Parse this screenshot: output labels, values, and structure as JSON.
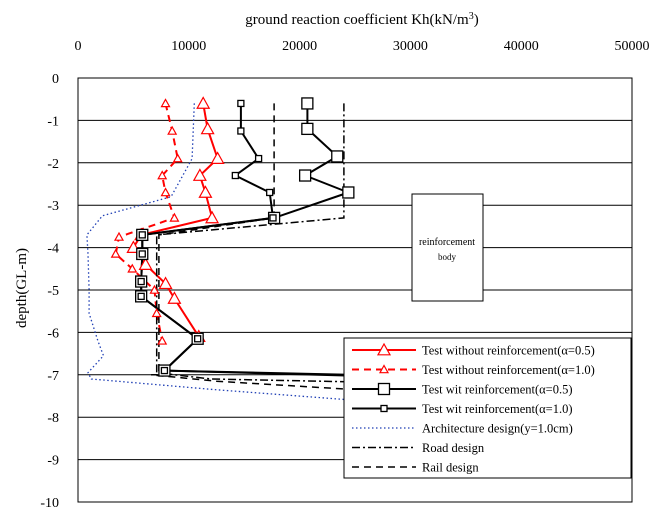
{
  "chart_data": {
    "type": "line",
    "orientation": "depth-down",
    "xlabel": "ground reaction coefficient  Kh(kN/m",
    "xlabel_sup": "3",
    "xlabel_end": ")",
    "ylabel": "depth(GL-m)",
    "xlim": [
      0,
      50000
    ],
    "ylim": [
      -10,
      0
    ],
    "x_ticks": [
      "0",
      "10000",
      "20000",
      "30000",
      "40000",
      "50000"
    ],
    "y_ticks": [
      "0",
      "-1",
      "-2",
      "-3",
      "-4",
      "-5",
      "-6",
      "-7",
      "-8",
      "-9",
      "-10"
    ],
    "grid": "horizontal",
    "legend_position": "bottom-right",
    "annotation": {
      "line1": "reinforcement",
      "line2": "body"
    },
    "series": [
      {
        "name": "Test without reinforcement(α=0.5)",
        "color": "#ff0000",
        "dash": "solid",
        "marker": "triangle",
        "marker_size": "large",
        "width": 2,
        "points": [
          [
            11300,
            -0.6
          ],
          [
            11700,
            -1.2
          ],
          [
            12600,
            -1.9
          ],
          [
            11000,
            -2.3
          ],
          [
            11500,
            -2.7
          ],
          [
            12100,
            -3.3
          ],
          [
            5700,
            -3.7
          ],
          [
            5000,
            -4.0
          ],
          [
            6100,
            -4.4
          ],
          [
            7900,
            -4.85
          ],
          [
            8700,
            -5.2
          ],
          [
            10900,
            -6.1
          ]
        ]
      },
      {
        "name": "Test without reinforcement(α=1.0)",
        "color": "#ff0000",
        "dash": "dashed",
        "marker": "triangle",
        "marker_size": "small",
        "width": 2,
        "points": [
          [
            7900,
            -0.6
          ],
          [
            8500,
            -1.25
          ],
          [
            9000,
            -1.9
          ],
          [
            7600,
            -2.3
          ],
          [
            7900,
            -2.7
          ],
          [
            8700,
            -3.3
          ],
          [
            3700,
            -3.75
          ],
          [
            3400,
            -4.15
          ],
          [
            4900,
            -4.5
          ],
          [
            6900,
            -5.0
          ],
          [
            7100,
            -5.55
          ],
          [
            7600,
            -6.2
          ]
        ]
      },
      {
        "name": "Test wit reinforcement(α=0.5)",
        "color": "#000000",
        "dash": "solid",
        "marker": "square",
        "marker_size": "large",
        "width": 2,
        "points": [
          [
            20700,
            -0.6
          ],
          [
            20700,
            -1.2
          ],
          [
            23400,
            -1.85
          ],
          [
            20500,
            -2.3
          ],
          [
            24400,
            -2.7
          ],
          [
            17700,
            -3.3
          ],
          [
            5800,
            -3.7
          ],
          [
            5800,
            -4.15
          ],
          [
            5700,
            -4.8
          ],
          [
            5700,
            -5.15
          ],
          [
            10800,
            -6.15
          ],
          [
            7800,
            -6.9
          ],
          [
            50000,
            -7.15
          ]
        ]
      },
      {
        "name": "Test wit reinforcement(α=1.0)",
        "color": "#000000",
        "dash": "solid",
        "marker": "square",
        "marker_size": "small",
        "width": 2,
        "points": [
          [
            14700,
            -0.6
          ],
          [
            14700,
            -1.25
          ],
          [
            16300,
            -1.9
          ],
          [
            14200,
            -2.3
          ],
          [
            17300,
            -2.7
          ],
          [
            17600,
            -3.3
          ],
          [
            5800,
            -3.7
          ],
          [
            5800,
            -4.15
          ],
          [
            5700,
            -4.8
          ],
          [
            5700,
            -5.15
          ],
          [
            10800,
            -6.15
          ],
          [
            7800,
            -6.9
          ],
          [
            50000,
            -7.2
          ]
        ]
      },
      {
        "name": "Architecture design(y=1.0cm)",
        "color": "#1f3fb5",
        "dash": "dotted",
        "marker": "none",
        "width": 1.3,
        "points": [
          [
            10500,
            -0.6
          ],
          [
            10300,
            -1.9
          ],
          [
            8400,
            -2.8
          ],
          [
            2200,
            -3.25
          ],
          [
            800,
            -3.7
          ],
          [
            900,
            -4.15
          ],
          [
            1000,
            -5.0
          ],
          [
            1000,
            -5.55
          ],
          [
            1800,
            -6.2
          ],
          [
            2300,
            -6.55
          ],
          [
            900,
            -6.95
          ],
          [
            1200,
            -7.1
          ],
          [
            12300,
            -7.35
          ],
          [
            35000,
            -7.8
          ],
          [
            43000,
            -8.2
          ],
          [
            47000,
            -8.6
          ]
        ]
      },
      {
        "name": "Road design",
        "color": "#000000",
        "dash": "dashdot",
        "marker": "none",
        "width": 1.5,
        "points": [
          [
            24000,
            -0.6
          ],
          [
            24000,
            -3.3
          ],
          [
            7100,
            -3.7
          ],
          [
            7100,
            -6.95
          ],
          [
            12000,
            -7.1
          ],
          [
            50000,
            -7.3
          ]
        ]
      },
      {
        "name": "Rail design",
        "color": "#000000",
        "dash": "dashed",
        "marker": "none",
        "width": 1.5,
        "points": [
          [
            17700,
            -0.6
          ],
          [
            17700,
            -3.3
          ],
          [
            7300,
            -3.7
          ],
          [
            7300,
            -7.0
          ],
          [
            6600,
            -7.0
          ],
          [
            12500,
            -7.15
          ],
          [
            47000,
            -7.7
          ]
        ]
      }
    ]
  }
}
